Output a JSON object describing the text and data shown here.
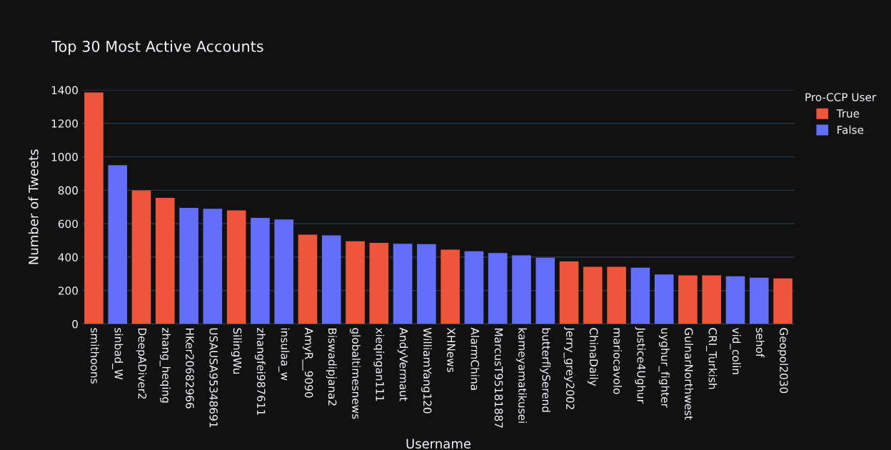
{
  "chart_data": {
    "type": "bar",
    "title": "Top 30 Most Active Accounts",
    "xlabel": "Username",
    "ylabel": "Number of Tweets",
    "legend_title": "Pro-CCP User",
    "categories": [
      "smithoons",
      "sinbad_W",
      "DeepADiver2",
      "zhang_heqing",
      "HKer20682966",
      "USAUSA95348691",
      "SilingWu",
      "zhangfei987611",
      "insulaa_w",
      "AmyR__9090",
      "Biswadipjana2",
      "globaltimesnews",
      "xieqingan111",
      "AndyVermaut",
      "WilliamYang120",
      "XHNews",
      "AlarmChina",
      "MarcusT95181887",
      "kameyamatikusei",
      "butterflySerend",
      "Jerry_grey2002",
      "ChinaDaily",
      "mariocavolo",
      "Justice4Ughur",
      "uyghur_fighter",
      "GulnarNorthwest",
      "CRI_Turkish",
      "vid_colin",
      "sehof",
      "Geopol2030"
    ],
    "series": [
      {
        "name": "True",
        "color": "#ef553b",
        "values": [
          1385,
          null,
          800,
          755,
          null,
          null,
          680,
          null,
          null,
          535,
          null,
          495,
          485,
          null,
          null,
          445,
          null,
          null,
          null,
          null,
          374,
          342,
          342,
          null,
          null,
          291,
          291,
          null,
          null,
          273
        ]
      },
      {
        "name": "False",
        "color": "#636efa",
        "values": [
          null,
          950,
          null,
          null,
          695,
          690,
          null,
          635,
          625,
          null,
          530,
          null,
          null,
          480,
          478,
          null,
          435,
          425,
          411,
          397,
          null,
          null,
          null,
          337,
          296,
          null,
          null,
          286,
          277,
          null
        ]
      }
    ],
    "ylim": [
      0,
      1400
    ],
    "yticks": [
      0,
      200,
      400,
      600,
      800,
      1000,
      1200,
      1400
    ],
    "grid": "y",
    "legend": "top right"
  }
}
